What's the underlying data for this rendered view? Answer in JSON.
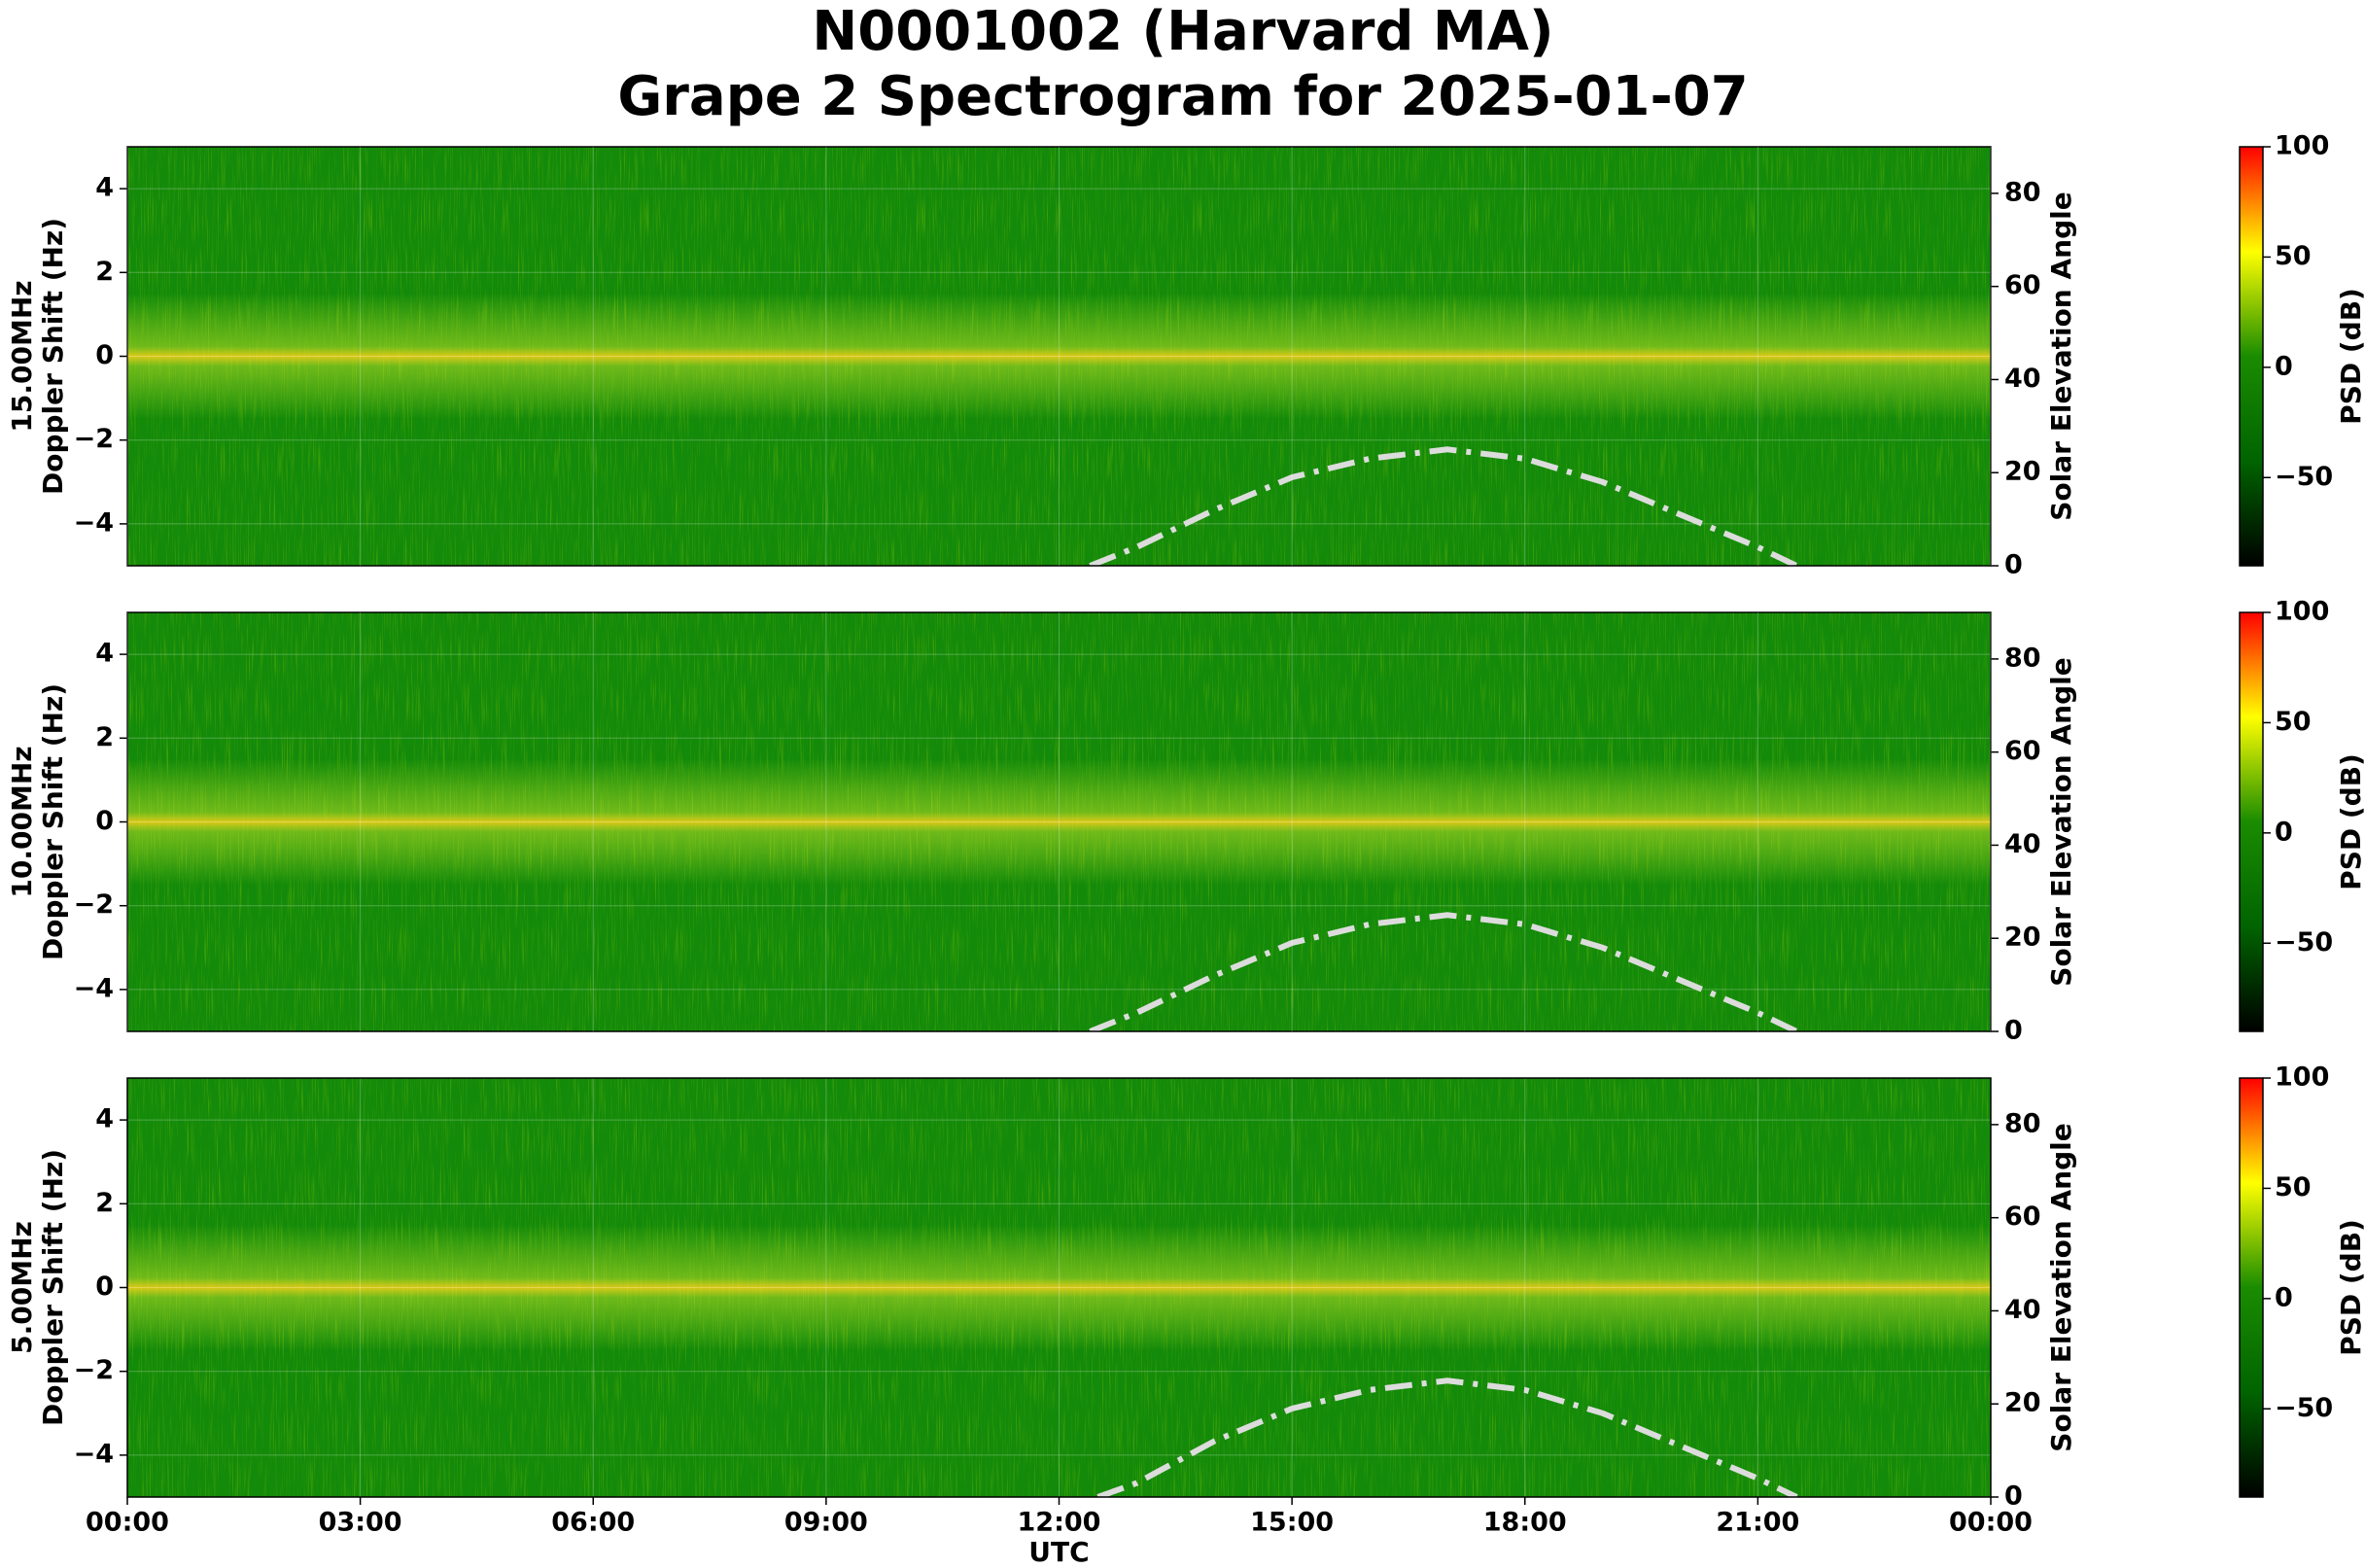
{
  "title": [
    "N0001002 (Harvard MA)",
    "Grape 2 Spectrogram for 2025-01-07"
  ],
  "chart_data": [
    {
      "type": "spectrogram",
      "ylabel": [
        "15.00MHz",
        "Doppler Shift (Hz)"
      ],
      "y2label": "Solar Elevation Angle",
      "xlim": [
        0,
        24
      ],
      "ylim": [
        -5,
        5
      ],
      "yticks": [
        {
          "value": -4,
          "label": "−4"
        },
        {
          "value": -2,
          "label": "−2"
        },
        0,
        2,
        4
      ],
      "y2lim": [
        0,
        90
      ],
      "y2ticks": [
        0,
        20,
        40,
        60,
        80
      ],
      "grid": true,
      "x": [
        12.4,
        13,
        14,
        15,
        16,
        17,
        18,
        19,
        20,
        21,
        21.5
      ],
      "series": [
        {
          "color": "#dcdcdc",
          "values": [
            0,
            4,
            12,
            19,
            23,
            25,
            23,
            18,
            11,
            4,
            0
          ],
          "axis": "y2"
        }
      ],
      "colorbar": {
        "label": "PSD (dB)",
        "clim": [
          -90,
          100
        ],
        "ticks": [
          {
            "value": -50,
            "label": "−50"
          },
          0,
          50,
          100
        ],
        "colors": [
          "#000000",
          "#006400",
          "#1a8c00",
          "#ffff00",
          "#ff0000"
        ]
      }
    },
    {
      "type": "spectrogram",
      "ylabel": [
        "10.00MHz",
        "Doppler Shift (Hz)"
      ],
      "y2label": "Solar Elevation Angle",
      "xlim": [
        0,
        24
      ],
      "ylim": [
        -5,
        5
      ],
      "yticks": [
        {
          "value": -4,
          "label": "−4"
        },
        {
          "value": -2,
          "label": "−2"
        },
        0,
        2,
        4
      ],
      "y2lim": [
        0,
        90
      ],
      "y2ticks": [
        0,
        20,
        40,
        60,
        80
      ],
      "grid": true,
      "x": [
        12.4,
        13,
        14,
        15,
        16,
        17,
        18,
        19,
        20,
        21,
        21.5
      ],
      "series": [
        {
          "color": "#dcdcdc",
          "values": [
            0,
            4,
            12,
            19,
            23,
            25,
            23,
            18,
            11,
            4,
            0
          ],
          "axis": "y2"
        }
      ],
      "colorbar": {
        "label": "PSD (dB)",
        "clim": [
          -90,
          100
        ],
        "ticks": [
          {
            "value": -50,
            "label": "−50"
          },
          0,
          50,
          100
        ],
        "colors": [
          "#000000",
          "#006400",
          "#1a8c00",
          "#ffff00",
          "#ff0000"
        ]
      }
    },
    {
      "type": "spectrogram",
      "ylabel": [
        "5.00MHz",
        "Doppler Shift (Hz)"
      ],
      "y2label": "Solar Elevation Angle",
      "xlabel": "UTC",
      "xlim": [
        0,
        24
      ],
      "xticks": [
        {
          "value": 0,
          "label": "00:00"
        },
        {
          "value": 3,
          "label": "03:00"
        },
        {
          "value": 6,
          "label": "06:00"
        },
        {
          "value": 9,
          "label": "09:00"
        },
        {
          "value": 12,
          "label": "12:00"
        },
        {
          "value": 15,
          "label": "15:00"
        },
        {
          "value": 18,
          "label": "18:00"
        },
        {
          "value": 21,
          "label": "21:00"
        },
        {
          "value": 24,
          "label": "00:00"
        }
      ],
      "ylim": [
        -5,
        5
      ],
      "yticks": [
        {
          "value": -4,
          "label": "−4"
        },
        {
          "value": -2,
          "label": "−2"
        },
        0,
        2,
        4
      ],
      "y2lim": [
        0,
        90
      ],
      "y2ticks": [
        0,
        20,
        40,
        60,
        80
      ],
      "grid": true,
      "x": [
        12.5,
        13,
        14,
        15,
        16,
        17,
        18,
        19,
        20,
        21,
        21.5
      ],
      "series": [
        {
          "color": "#dcdcdc",
          "values": [
            0,
            3,
            12,
            19,
            23,
            25,
            23,
            18,
            11,
            4,
            0
          ],
          "axis": "y2"
        }
      ],
      "colorbar": {
        "label": "PSD (dB)",
        "clim": [
          -90,
          100
        ],
        "ticks": [
          {
            "value": -50,
            "label": "−50"
          },
          0,
          50,
          100
        ],
        "colors": [
          "#000000",
          "#006400",
          "#1a8c00",
          "#ffff00",
          "#ff0000"
        ]
      }
    }
  ]
}
